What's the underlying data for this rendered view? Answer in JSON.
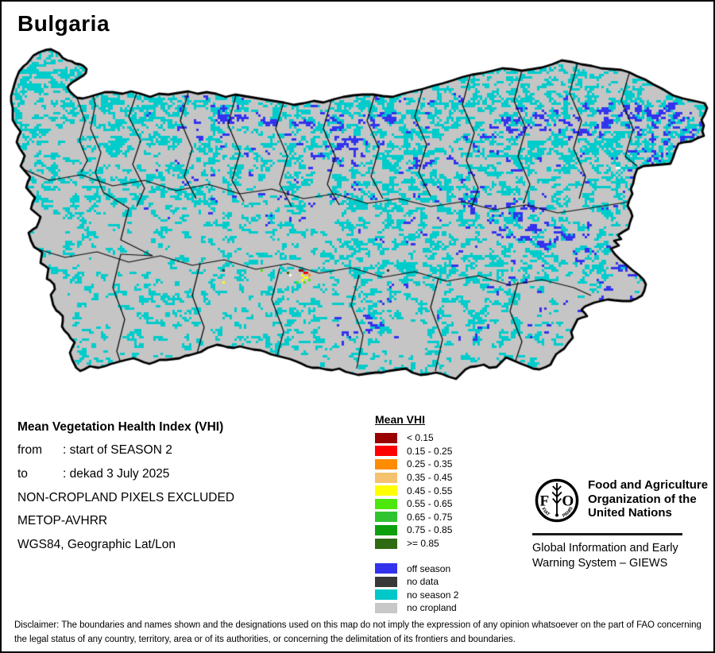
{
  "title": "Bulgaria",
  "info": {
    "heading": "Mean Vegetation Health Index (VHI)",
    "rows": [
      {
        "label": "from",
        "value": ": start of SEASON 2"
      },
      {
        "label": "to",
        "value": ": dekad 3 July 2025"
      }
    ],
    "lines": [
      "NON-CROPLAND PIXELS EXCLUDED",
      "METOP-AVHRR",
      "WGS84, Geographic Lat/Lon"
    ]
  },
  "legend": {
    "title": "Mean VHI",
    "classes": [
      {
        "label": "< 0.15",
        "color": "#990000"
      },
      {
        "label": "0.15 - 0.25",
        "color": "#FF0000"
      },
      {
        "label": "0.25 - 0.35",
        "color": "#FF8C00"
      },
      {
        "label": "0.35 - 0.45",
        "color": "#F4C26E"
      },
      {
        "label": "0.45 - 0.55",
        "color": "#FFFF00"
      },
      {
        "label": "0.55 - 0.65",
        "color": "#4DE60D"
      },
      {
        "label": "0.65 - 0.75",
        "color": "#2FC42F"
      },
      {
        "label": "0.75 - 0.85",
        "color": "#0D9F0D"
      },
      {
        "label": ">= 0.85",
        "color": "#2F6B12"
      }
    ],
    "statuses": [
      {
        "label": "off season",
        "color": "#3333EE"
      },
      {
        "label": "no data",
        "color": "#383838"
      },
      {
        "label": "no season 2",
        "color": "#00C8C8"
      },
      {
        "label": "no cropland",
        "color": "#C8C8C8"
      }
    ]
  },
  "map_colors": {
    "no_cropland": "#C5C5C5",
    "no_season2": "#00CCCC",
    "off_season": "#3333EE",
    "no_data": "#383838",
    "boundary": "#000000",
    "background": "#FFFFFF"
  },
  "org": {
    "logo_letters": "FAO",
    "logo_motto": [
      "FIAT",
      "PANIS"
    ],
    "name_lines": [
      "Food and Agriculture",
      "Organization of the",
      "United Nations"
    ],
    "division_lines": [
      "Global Information and Early",
      "Warning System – GIEWS"
    ]
  },
  "disclaimer": "Disclaimer: The boundaries and names shown and the designations used on this map do not imply the expression of any opinion whatsoever on the part of FAO concerning the legal status of any country, territory, area or of its authorities, or concerning the delimitation of its frontiers and boundaries."
}
